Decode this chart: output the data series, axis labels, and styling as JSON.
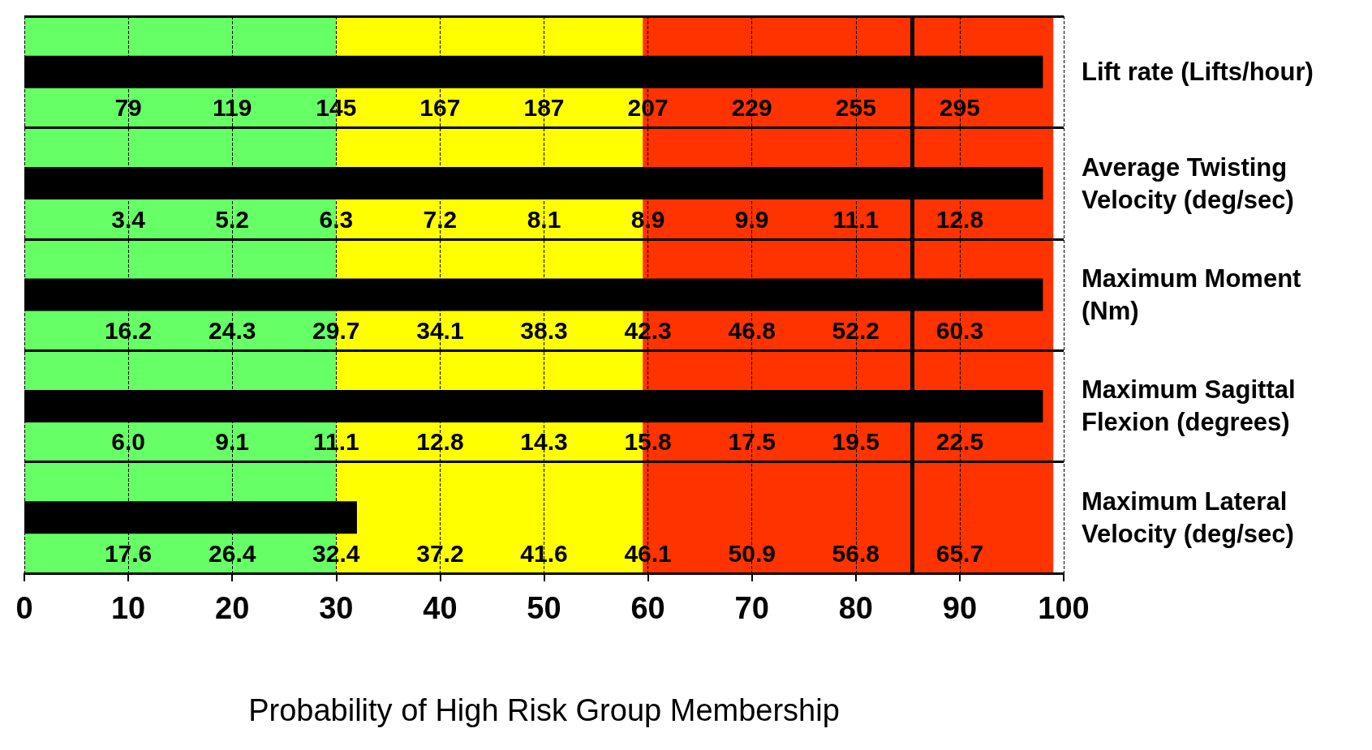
{
  "chart_data": {
    "type": "bar",
    "orientation": "horizontal",
    "xlabel": "Probability of High Risk Group Membership",
    "categories": [
      "Lift rate (Lifts/hour)",
      "Average Twisting Velocity (deg/sec)",
      "Maximum Moment (Nm)",
      "Maximum Sagittal Flexion (degrees)",
      "Maximum Lateral Velocity (deg/sec)"
    ],
    "values": [
      98,
      98,
      98,
      98,
      32
    ],
    "color": "#000000",
    "xlim": [
      0,
      100
    ],
    "xticks": [
      0,
      10,
      20,
      30,
      40,
      50,
      60,
      70,
      80,
      90,
      100
    ],
    "grid": "x",
    "bands": [
      {
        "axis": "x",
        "from": 0,
        "to": 30,
        "color": "#66ff66"
      },
      {
        "axis": "x",
        "from": 30,
        "to": 59.5,
        "color": "#ffff00"
      },
      {
        "axis": "x",
        "from": 59.5,
        "to": 99,
        "color": "#ff3300"
      }
    ],
    "ref_lines": [
      {
        "axis": "x",
        "value": 85.4,
        "color": "#000000"
      }
    ],
    "annotations": [
      "79",
      "119",
      "145",
      "167",
      "187",
      "207",
      "229",
      "255",
      "295",
      "3.4",
      "5.2",
      "6.3",
      "7.2",
      "8.1",
      "8.9",
      "9.9",
      "11.1",
      "12.8",
      "16.2",
      "24.3",
      "29.7",
      "34.1",
      "38.3",
      "42.3",
      "46.8",
      "52.2",
      "60.3",
      "6.0",
      "9.1",
      "11.1",
      "12.8",
      "14.3",
      "15.8",
      "17.5",
      "19.5",
      "22.5",
      "17.6",
      "26.4",
      "32.4",
      "37.2",
      "41.6",
      "46.1",
      "50.9",
      "56.8",
      "65.7"
    ]
  }
}
